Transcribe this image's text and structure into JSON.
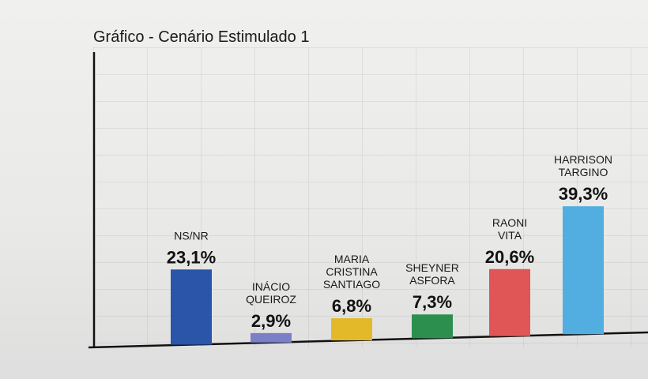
{
  "chart_data": {
    "type": "bar",
    "title": "Gráfico - Cenário Estimulado 1",
    "categories": [
      [
        "NS/NR"
      ],
      [
        "INÁCIO",
        "QUEIROZ"
      ],
      [
        "MARIA",
        "CRISTINA",
        "SANTIAGO"
      ],
      [
        "SHEYNER",
        "ASFORA"
      ],
      [
        "RAONI",
        "VITA"
      ],
      [
        "HARRISON",
        "TARGINO"
      ]
    ],
    "values": [
      23.1,
      2.9,
      6.8,
      7.3,
      20.6,
      39.3
    ],
    "value_labels": [
      "23,1%",
      "2,9%",
      "6,8%",
      "7,3%",
      "20,6%",
      "39,3%"
    ],
    "colors": [
      "#2a55a8",
      "#7a7fc6",
      "#e3b92a",
      "#2d8f4e",
      "#e05656",
      "#52aee0"
    ],
    "xlabel": "",
    "ylabel": "",
    "grid": true,
    "legend": "none"
  }
}
